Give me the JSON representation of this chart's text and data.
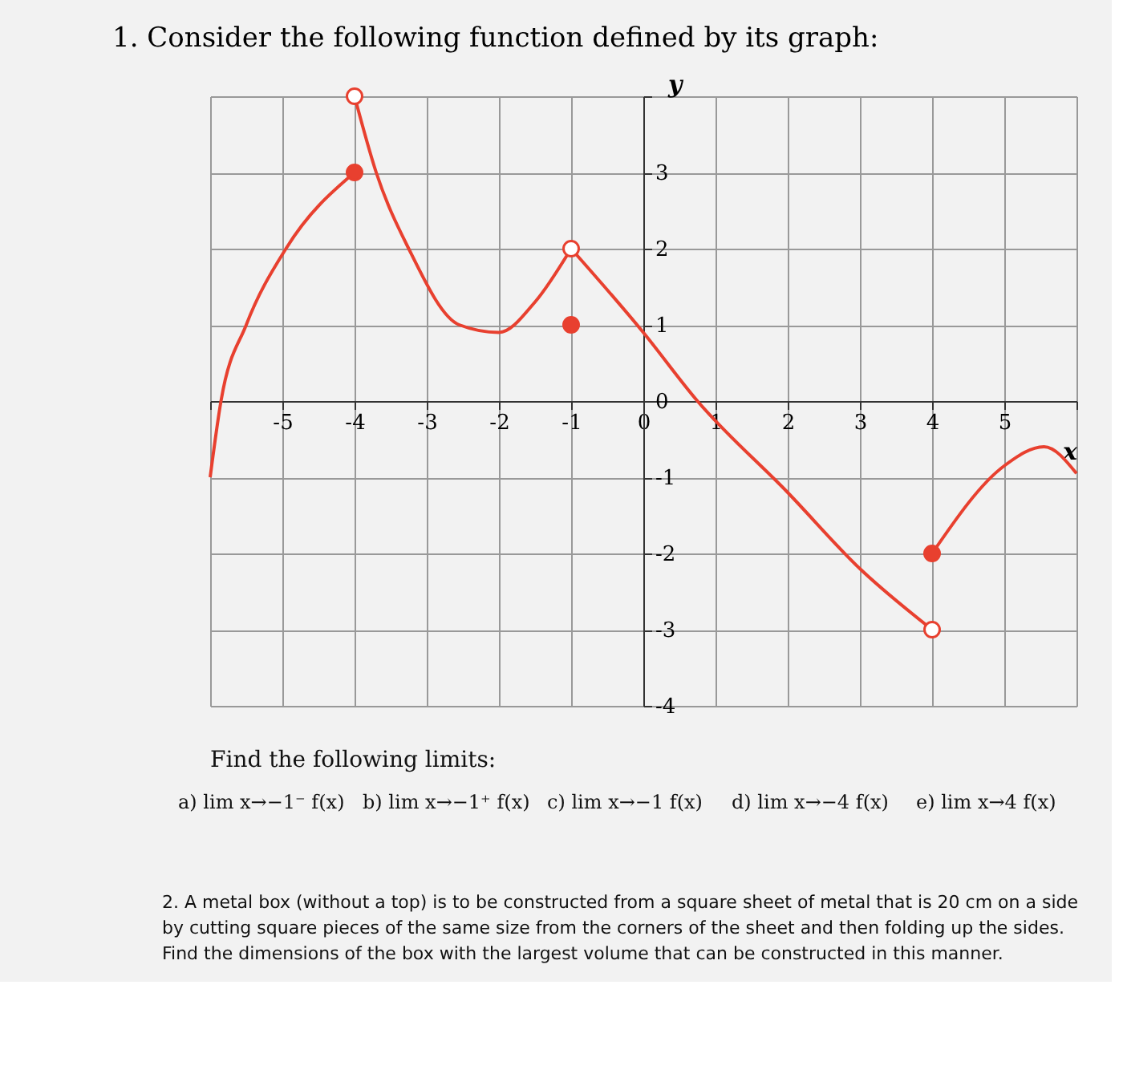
{
  "chart_data": {
    "type": "line",
    "title": "1. Consider the following function defined by its graph:",
    "xlabel": "x",
    "ylabel": "y",
    "xlim": [
      -6,
      6
    ],
    "ylim": [
      -4,
      4
    ],
    "xticks": [
      {
        "value": -6,
        "label": null
      },
      -5,
      -4,
      -3,
      -2,
      -1,
      0,
      1,
      2,
      3,
      4,
      5,
      {
        "value": 6,
        "label": null
      }
    ],
    "yticks": [
      -4,
      -3,
      -2,
      -1,
      0,
      1,
      2,
      3,
      {
        "value": 4,
        "label": null
      }
    ],
    "grid": true,
    "line_style": "solid",
    "series": [
      {
        "color": "#e8402f",
        "x": [
          -6,
          -5.85,
          -5.5,
          -4.95,
          -4
        ],
        "values": [
          -1,
          0,
          1,
          2,
          3
        ]
      },
      {
        "color": "#e8402f",
        "x": [
          -4,
          -3.7,
          -3.25,
          -2.55,
          -2,
          -1.5,
          -1
        ],
        "values": [
          4,
          3,
          2,
          1,
          0.9,
          1.3,
          2
        ]
      },
      {
        "color": "#e8402f",
        "x": [
          -1,
          0,
          0.75,
          2,
          3,
          4
        ],
        "values": [
          2,
          0.9,
          0,
          -1.2,
          -2.2,
          -3
        ]
      },
      {
        "color": "#e8402f",
        "x": [
          4,
          5,
          5.55,
          6
        ],
        "values": [
          -2,
          -0.85,
          -0.6,
          -0.95
        ]
      },
      {
        "type": "scatter",
        "marker": "circle",
        "color": "#e8402f",
        "x": [
          -4,
          -1,
          4
        ],
        "values": [
          3,
          1,
          -2
        ]
      },
      {
        "type": "scatter",
        "marker": "circle",
        "color": "#ffffff",
        "x": [
          -4,
          -1,
          4
        ],
        "values": [
          4,
          2,
          -3
        ]
      }
    ],
    "annotations": [
      "Find the following limits:",
      "a) lim x→−1⁻ f(x)",
      "b) lim x→−1⁺ f(x)",
      "c) lim x→−1 f(x)",
      "d) lim x→−4 f(x)",
      "e) lim x→4 f(x)",
      "2. A metal box (without a top) is to be constructed from a square sheet of metal that is 20 cm on a side by cutting square pieces of the same size from the corners of the sheet and then folding up the sides. Find the dimensions of the box with the largest volume that can be constructed in this manner."
    ]
  }
}
